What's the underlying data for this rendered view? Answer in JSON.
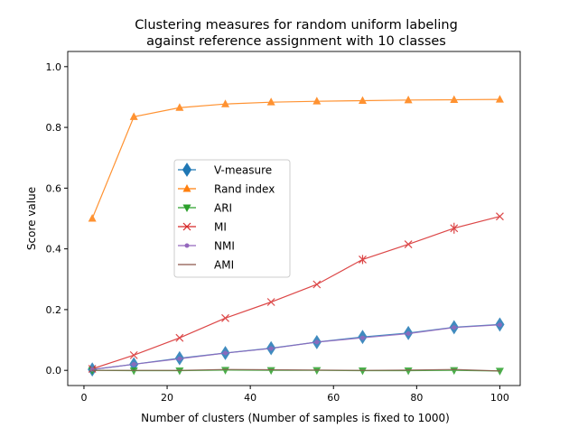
{
  "chart_data": {
    "type": "line",
    "title": "Clustering measures for random uniform labeling\nagainst reference assignment with 10 classes",
    "xlabel": "Number of clusters (Number of samples is fixed to 1000)",
    "ylabel": "Score value",
    "xlim": [
      -3.9,
      104.9
    ],
    "ylim": [
      -0.05,
      1.05
    ],
    "xticks": [
      0,
      20,
      40,
      60,
      80,
      100
    ],
    "yticks": [
      0.0,
      0.2,
      0.4,
      0.6,
      0.8,
      1.0
    ],
    "xtick_labels": [
      "0",
      "20",
      "40",
      "60",
      "80",
      "100"
    ],
    "ytick_labels": [
      "0.0",
      "0.2",
      "0.4",
      "0.6",
      "0.8",
      "1.0"
    ],
    "grid": false,
    "legend_position": "center-left",
    "x": [
      2,
      12,
      23,
      34,
      45,
      56,
      67,
      78,
      89,
      100
    ],
    "series": [
      {
        "name": "V-measure",
        "color": "#1f77b4",
        "marker": "diamond",
        "values": [
          0.003,
          0.02,
          0.04,
          0.057,
          0.073,
          0.093,
          0.11,
          0.123,
          0.142,
          0.151
        ],
        "errors": [
          0,
          0,
          0,
          0,
          0,
          0,
          0,
          0,
          0,
          0
        ]
      },
      {
        "name": "Rand index",
        "color": "#ff7f0e",
        "marker": "triangle-up",
        "values": [
          0.5,
          0.835,
          0.865,
          0.877,
          0.883,
          0.886,
          0.888,
          0.89,
          0.891,
          0.892
        ],
        "errors": [
          0,
          0,
          0,
          0,
          0,
          0,
          0,
          0,
          0,
          0
        ]
      },
      {
        "name": "ARI",
        "color": "#2ca02c",
        "marker": "triangle-down",
        "values": [
          0.0,
          -0.001,
          -0.001,
          0.001,
          0.0,
          0.0,
          -0.001,
          -0.001,
          0.0,
          -0.002
        ],
        "errors": [
          0,
          0,
          0,
          0,
          0,
          0,
          0,
          0,
          0,
          0
        ]
      },
      {
        "name": "MI",
        "color": "#d62728",
        "marker": "x",
        "values": [
          0.005,
          0.05,
          0.107,
          0.172,
          0.225,
          0.283,
          0.365,
          0.415,
          0.468,
          0.507
        ],
        "errors": [
          0,
          0,
          0,
          0,
          0,
          0,
          0.015,
          0,
          0.018,
          0
        ]
      },
      {
        "name": "NMI",
        "color": "#9467bd",
        "marker": "dot",
        "values": [
          0.003,
          0.02,
          0.038,
          0.057,
          0.072,
          0.093,
          0.107,
          0.121,
          0.141,
          0.15
        ],
        "errors": [
          0,
          0,
          0,
          0,
          0,
          0,
          0,
          0,
          0,
          0
        ]
      },
      {
        "name": "AMI",
        "color": "#8c564b",
        "marker": "pixel",
        "values": [
          0.0,
          0.0,
          0.0,
          0.003,
          0.002,
          0.001,
          0.0,
          0.001,
          0.003,
          -0.002
        ],
        "errors": [
          0,
          0,
          0,
          0,
          0,
          0,
          0,
          0,
          0,
          0
        ]
      }
    ]
  }
}
